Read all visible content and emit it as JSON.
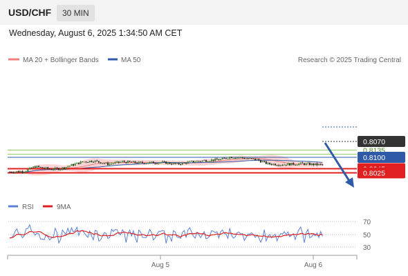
{
  "header": {
    "pair": "USD/CHF",
    "timeframe": "30 MIN"
  },
  "datetime": "Wednesday, August 6, 2025 1:34:50 AM CET",
  "legend": {
    "items": [
      {
        "label": "MA 20 + Bollinger Bands",
        "color": "#f08080"
      },
      {
        "label": "MA 50",
        "color": "#2f5aa8"
      }
    ],
    "copyright": "Research © 2025 Trading Central"
  },
  "rsi_legend": {
    "items": [
      {
        "label": "RSI",
        "color": "#5b7fd6"
      },
      {
        "label": "9MA",
        "color": "#e02020"
      }
    ]
  },
  "colors": {
    "bullish": "#2e8b2e",
    "bearish": "#2b2b2b",
    "bands": "#fbd5d5",
    "forecast_arrow": "#2f5aa8"
  },
  "chart_data": [
    {
      "type": "candlestick",
      "x_ticks": [
        "Aug 5",
        "Aug 6"
      ],
      "ylim": [
        0.8015,
        0.815
      ],
      "last_price": {
        "value": "0.8070",
        "y": 0.807
      },
      "levels": [
        {
          "label": "0.8135",
          "value": 0.8135,
          "kind": "target",
          "color": "#9ccc65"
        },
        {
          "label": "0.8115",
          "value": 0.8115,
          "kind": "target",
          "color": "#9ccc65"
        },
        {
          "label": "0.8100",
          "value": 0.81,
          "kind": "pivot",
          "color": "#2f5aa8"
        },
        {
          "label": "0.8045",
          "value": 0.8045,
          "kind": "support",
          "color": "#e02020"
        },
        {
          "label": "0.8025",
          "value": 0.8025,
          "kind": "support",
          "color": "#e02020"
        }
      ],
      "forecast": {
        "from": 0.807,
        "to": 0.8025
      }
    },
    {
      "type": "line",
      "name": "RSI",
      "y_ticks": [
        "70",
        "50",
        "30"
      ],
      "ylim": [
        25,
        80
      ],
      "levels": [
        70,
        50,
        30
      ]
    }
  ]
}
